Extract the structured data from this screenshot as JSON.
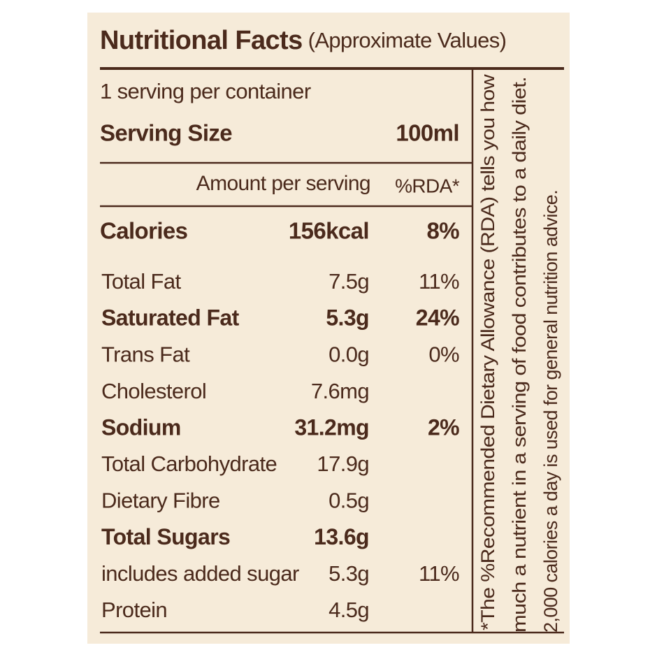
{
  "header": {
    "title": "Nutritional Facts",
    "subtitle": "(Approximate Values)"
  },
  "servings": "1 serving per container",
  "serving_size": {
    "label": "Serving Size",
    "value": "100ml"
  },
  "columns": {
    "amount": "Amount per serving",
    "rda": "%RDA*"
  },
  "calories": {
    "label": "Calories",
    "value": "156kcal",
    "rda": "8%"
  },
  "rows": [
    {
      "label": "Total Fat",
      "value": "7.5g",
      "rda": "11%",
      "bold": false
    },
    {
      "label": "Saturated Fat",
      "value": "5.3g",
      "rda": "24%",
      "bold": true
    },
    {
      "label": "Trans Fat",
      "value": "0.0g",
      "rda": "0%",
      "bold": false
    },
    {
      "label": "Cholesterol",
      "value": "7.6mg",
      "bold": false
    },
    {
      "label": "Sodium",
      "value": "31.2mg",
      "rda": "2%",
      "bold": true
    },
    {
      "label": "Total Carbohydrate",
      "value": "17.9g",
      "bold": false
    },
    {
      "label": "Dietary Fibre",
      "value": "0.5g",
      "bold": false
    },
    {
      "label": "Total Sugars",
      "value": "13.6g",
      "bold": true
    },
    {
      "label": "includes added sugar",
      "value": "5.3g",
      "rda": "11%",
      "bold": false
    },
    {
      "label": "Protein",
      "value": "4.5g",
      "bold": false
    }
  ],
  "footnote": [
    "*The %Recommended Dietary Allowance (RDA) tells you how",
    "much a nutrient in a serving of food contributes to a daily diet.",
    "2,000 calories a day is used for general nutrition advice."
  ]
}
